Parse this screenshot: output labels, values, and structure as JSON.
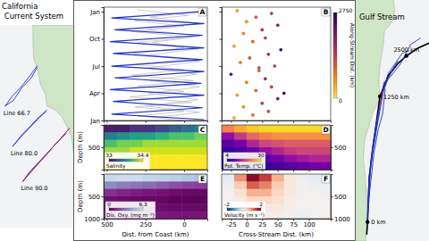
{
  "chart_data": [
    {
      "type": "map",
      "title": "California Current System",
      "xlim": [
        -127,
        -117
      ],
      "ylim": [
        28,
        39
      ],
      "tick_labels": false,
      "series": [
        {
          "label": "Line 66.7",
          "color": "#2233cc",
          "x": [
            -121.9,
            -123.0,
            -124.2,
            -125.4,
            -126.3,
            -125.2,
            -124.0,
            -122.8,
            -121.9
          ],
          "values": [
            36.8,
            36.2,
            35.6,
            35.1,
            34.6,
            34.9,
            35.6,
            36.1,
            36.7
          ]
        },
        {
          "label": "Line 80.0",
          "color": "#2233cc",
          "x": [
            -120.6,
            -121.8,
            -123.0,
            -124.2,
            -125.3,
            -124.1,
            -122.9,
            -121.7,
            -120.7
          ],
          "values": [
            34.4,
            33.9,
            33.4,
            32.9,
            32.4,
            33.0,
            33.5,
            34.0,
            34.3
          ]
        },
        {
          "label": "Line 90.0",
          "color": "#2233cc",
          "x": [
            -117.5,
            -118.8,
            -120.2,
            -121.6,
            -123.0,
            -123.9,
            -122.5,
            -121.0,
            -119.5,
            -118.0
          ],
          "values": [
            33.4,
            32.8,
            32.2,
            31.6,
            31.0,
            30.5,
            31.2,
            31.8,
            32.5,
            33.1
          ]
        },
        {
          "color": "#e02020",
          "x": [
            -117.5,
            -123.9
          ],
          "values": [
            33.4,
            30.5
          ]
        }
      ]
    },
    {
      "type": "line",
      "label": "A",
      "xlim": [
        520,
        -150
      ],
      "xticks": [
        500,
        250,
        0
      ],
      "ylim": [
        0,
        12.5
      ],
      "yticks": [
        {
          "value": 0,
          "label": "Jan"
        },
        {
          "value": 3,
          "label": "Apr"
        },
        {
          "value": 6,
          "label": "Jul"
        },
        {
          "value": 9,
          "label": "Oct"
        },
        {
          "value": 12,
          "label": "Jan"
        }
      ],
      "tick_labels": "y",
      "series": [
        {
          "color": "#b4b4b4",
          "x": [
            0,
            300,
            0,
            320,
            -50,
            350,
            0,
            300,
            -60,
            340,
            0,
            310,
            -40,
            330,
            0,
            300,
            -50,
            340,
            0,
            320,
            -30,
            300
          ],
          "values": [
            0,
            0.5,
            1.0,
            1.5,
            2.0,
            2.6,
            3.2,
            3.8,
            4.4,
            5.0,
            5.6,
            6.2,
            6.8,
            7.4,
            8.0,
            8.6,
            9.2,
            9.8,
            10.4,
            11.0,
            11.6,
            12.2
          ]
        },
        {
          "color": "#b4b4b4",
          "x": [
            200,
            -100,
            250,
            -90,
            230,
            -100,
            220,
            -80,
            240,
            -100,
            230,
            -90,
            210,
            -100,
            240,
            -90,
            220,
            -100
          ],
          "values": [
            0.3,
            0.9,
            1.6,
            2.3,
            3.0,
            3.7,
            4.4,
            5.1,
            5.8,
            6.5,
            7.2,
            7.9,
            8.6,
            9.3,
            10.0,
            10.7,
            11.4,
            12.1
          ]
        },
        {
          "color": "#2233cc",
          "x": [
            -130,
            470,
            -120,
            460,
            -130,
            480,
            -110,
            450,
            -130,
            470,
            -120,
            460,
            -130,
            480,
            -120,
            450,
            -130,
            470,
            -120
          ],
          "values": [
            0.1,
            0.7,
            1.4,
            2.1,
            2.8,
            3.4,
            4.1,
            4.7,
            5.4,
            6.0,
            6.7,
            7.4,
            8.0,
            8.7,
            9.4,
            10.0,
            10.7,
            11.3,
            12.0
          ]
        }
      ]
    },
    {
      "type": "scatter",
      "label": "B",
      "xlim": [
        -40,
        135
      ],
      "xticks": [
        -25,
        0,
        25,
        50,
        75,
        100
      ],
      "ylim": [
        0,
        12.5
      ],
      "yticks": [
        0,
        3,
        6,
        9,
        12
      ],
      "tick_labels": false,
      "x": [
        -20,
        10,
        35,
        -5,
        25,
        50,
        -15,
        15,
        40,
        0,
        30,
        -25,
        20,
        45,
        -10,
        5,
        35,
        55,
        -20,
        10,
        30,
        -5,
        25,
        50,
        0,
        15,
        40,
        -15,
        20,
        60
      ],
      "values": [
        0.3,
        0.6,
        1.0,
        1.5,
        1.9,
        2.4,
        2.8,
        3.3,
        3.7,
        4.2,
        4.6,
        5.1,
        5.5,
        6.0,
        6.4,
        6.9,
        7.3,
        7.8,
        8.2,
        8.7,
        9.1,
        9.6,
        10.0,
        10.5,
        10.9,
        11.4,
        11.8,
        12.1,
        5.8,
        3.0
      ],
      "z": [
        300,
        800,
        1200,
        500,
        1500,
        2000,
        400,
        900,
        1300,
        600,
        1700,
        2200,
        1000,
        1400,
        700,
        1100,
        1600,
        2500,
        350,
        950,
        1250,
        650,
        1450,
        1900,
        550,
        1050,
        1350,
        450,
        1150,
        2600
      ],
      "colorbar": {
        "lim": [
          0,
          2750
        ],
        "ticks": [
          0,
          2750
        ],
        "label": "Along-Stream Dist. (km)"
      }
    },
    {
      "type": "heatmap",
      "label": "C",
      "ylabel": "Depth (m)",
      "xlim": [
        520,
        -150
      ],
      "xticks": [
        500,
        250,
        0
      ],
      "ylim": [
        0,
        1000
      ],
      "yticks": [
        500
      ],
      "tick_labels": "y",
      "x": [
        478,
        394,
        310,
        226,
        142,
        58,
        -26,
        -110
      ],
      "y": [
        83,
        250,
        417,
        583,
        750,
        917
      ],
      "values": [
        [
          33.1,
          33.1,
          33.2,
          33.2,
          33.3,
          33.4,
          33.5,
          33.6
        ],
        [
          33.6,
          33.7,
          33.8,
          33.8,
          33.9,
          34.0,
          34.0,
          34.1
        ],
        [
          34.0,
          34.1,
          34.1,
          34.2,
          34.2,
          34.2,
          34.2,
          34.2
        ],
        [
          34.2,
          34.2,
          34.3,
          34.3,
          34.3,
          34.3,
          34.3,
          34.3
        ],
        [
          34.3,
          34.3,
          34.4,
          34.4,
          34.4,
          34.4,
          34.4,
          34.4
        ],
        [
          34.4,
          34.4,
          34.4,
          34.4,
          34.4,
          34.4,
          34.4,
          34.4
        ]
      ],
      "colorbar": {
        "lim": [
          33,
          34.4
        ],
        "ticks": [
          33,
          34.4
        ],
        "label": "Salinity"
      }
    },
    {
      "type": "heatmap",
      "label": "D",
      "xlim": [
        -40,
        135
      ],
      "xticks": [
        -25,
        0,
        25,
        50,
        75,
        100
      ],
      "ylim": [
        0,
        1000
      ],
      "yticks": [
        500
      ],
      "tick_labels": "y",
      "x": [
        -30,
        -10,
        10,
        30,
        50,
        70,
        90,
        110,
        130
      ],
      "y": [
        83,
        250,
        417,
        583,
        750,
        917
      ],
      "values": [
        [
          22,
          25,
          27,
          28,
          28,
          28,
          28,
          28,
          28
        ],
        [
          12,
          16,
          20,
          22,
          23,
          23,
          23,
          23,
          23
        ],
        [
          8,
          10,
          14,
          17,
          18,
          19,
          19,
          19,
          19
        ],
        [
          6,
          7,
          9,
          12,
          14,
          16,
          17,
          17,
          17
        ],
        [
          5,
          5,
          6,
          8,
          10,
          12,
          13,
          14,
          14
        ],
        [
          4,
          4,
          5,
          6,
          7,
          8,
          9,
          10,
          10
        ]
      ],
      "colorbar": {
        "lim": [
          4,
          30
        ],
        "ticks": [
          4,
          30
        ],
        "label": "Pot. Temp. (°C)"
      }
    },
    {
      "type": "heatmap",
      "label": "E",
      "ylabel": "Depth (m)",
      "xlabel": "Dist. from Coast (km)",
      "xlim": [
        520,
        -150
      ],
      "xticks": [
        500,
        250,
        0
      ],
      "ylim": [
        0,
        1000
      ],
      "yticks": [
        500,
        1000
      ],
      "tick_labels": true,
      "x": [
        478,
        394,
        310,
        226,
        142,
        58,
        -26,
        -110
      ],
      "y": [
        83,
        250,
        417,
        583,
        750,
        917
      ],
      "values": [
        [
          5.8,
          5.9,
          5.9,
          5.7,
          5.6,
          5.4,
          5.2,
          5.0
        ],
        [
          3.5,
          3.2,
          3.0,
          2.8,
          2.5,
          2.2,
          2.0,
          1.8
        ],
        [
          1.5,
          1.3,
          1.1,
          0.9,
          0.8,
          0.6,
          0.5,
          0.5
        ],
        [
          0.7,
          0.6,
          0.5,
          0.4,
          0.4,
          0.3,
          0.3,
          0.3
        ],
        [
          0.9,
          0.8,
          0.7,
          0.6,
          0.6,
          0.5,
          0.5,
          0.5
        ],
        [
          1.3,
          1.2,
          1.1,
          1.0,
          1.0,
          0.9,
          0.9,
          0.9
        ]
      ],
      "colorbar": {
        "lim": [
          0,
          6.3
        ],
        "ticks": [
          0,
          6.3
        ],
        "label": "Dis. Oxy. (mg m⁻³)"
      }
    },
    {
      "type": "heatmap",
      "label": "F",
      "xlabel": "Cross-Stream Dist. (km)",
      "xlim": [
        -40,
        135
      ],
      "xticks": [
        -25,
        0,
        25,
        50,
        75,
        100
      ],
      "ylim": [
        0,
        1000
      ],
      "yticks": [
        500,
        1000
      ],
      "tick_labels": true,
      "x": [
        -30,
        -10,
        10,
        30,
        50,
        70,
        90,
        110,
        130
      ],
      "y": [
        83,
        250,
        417,
        583,
        750,
        917
      ],
      "values": [
        [
          -0.2,
          0.9,
          1.8,
          1.4,
          0.7,
          0.2,
          -0.1,
          -0.2,
          -0.2
        ],
        [
          -0.1,
          0.5,
          1.2,
          1.0,
          0.5,
          0.2,
          0.0,
          -0.1,
          -0.1
        ],
        [
          0.0,
          0.3,
          0.7,
          0.7,
          0.4,
          0.2,
          0.0,
          0.0,
          -0.1
        ],
        [
          0.0,
          0.2,
          0.4,
          0.4,
          0.3,
          0.1,
          0.0,
          0.0,
          0.0
        ],
        [
          0.0,
          0.1,
          0.2,
          0.2,
          0.2,
          0.1,
          0.0,
          0.0,
          0.0
        ],
        [
          0.0,
          0.1,
          0.1,
          0.1,
          0.1,
          0.0,
          -0.1,
          0.0,
          0.0
        ]
      ],
      "colorbar": {
        "lim": [
          -2,
          2
        ],
        "ticks": [
          -2,
          2
        ],
        "label": "Velocity (m s⁻¹)"
      }
    },
    {
      "type": "map",
      "title": "Gulf Stream",
      "xlim": [
        -84,
        -58
      ],
      "ylim": [
        24,
        43
      ],
      "tick_labels": false,
      "path": {
        "color": "#000000",
        "x": [
          -80.1,
          -79.8,
          -79.2,
          -77.5,
          -75.4,
          -72.5,
          -69,
          -66,
          -62,
          -58
        ],
        "values": [
          24.5,
          25.5,
          29,
          32,
          35.4,
          37,
          38,
          38.6,
          39.2,
          39.6
        ]
      },
      "markers": [
        {
          "x": -79.8,
          "y": 25.5,
          "label": "0 km"
        },
        {
          "x": -75.4,
          "y": 35.4,
          "label": "1250 km"
        },
        {
          "x": -66,
          "y": 38.6,
          "label": "2500 km"
        }
      ],
      "series": [
        {
          "color": "#2233cc",
          "x": [
            -79.8,
            -79.3,
            -78.0,
            -76.5,
            -75.0,
            -73.0,
            -71.0,
            -69.0
          ],
          "values": [
            26,
            29,
            31.5,
            33.5,
            35.3,
            36.5,
            37.5,
            38.2
          ]
        },
        {
          "color": "#2233cc",
          "x": [
            -79.5,
            -78.5,
            -77.5,
            -75.8,
            -74.2,
            -72.5,
            -70.0,
            -67.5,
            -65.0
          ],
          "values": [
            27,
            30.5,
            32.0,
            33.8,
            35.8,
            37.2,
            38.0,
            38.8,
            39.0
          ]
        },
        {
          "color": "#2233cc",
          "x": [
            -78.8,
            -77.0,
            -75.5,
            -74.0,
            -71.5,
            -68.0,
            -64.5,
            -61.0
          ],
          "values": [
            30,
            32.2,
            34.5,
            36.5,
            37.0,
            38.0,
            39.5,
            40.0
          ]
        },
        {
          "color": "#2233cc",
          "x": [
            -80.0,
            -79.0,
            -77.5,
            -76.0,
            -74.5,
            -73.5
          ],
          "values": [
            25.2,
            28.0,
            31.0,
            32.8,
            34.0,
            36.0
          ]
        },
        {
          "color": "#e02020",
          "x": [
            -75.3,
            -74.6
          ],
          "values": [
            34.6,
            35.8
          ]
        }
      ]
    }
  ]
}
